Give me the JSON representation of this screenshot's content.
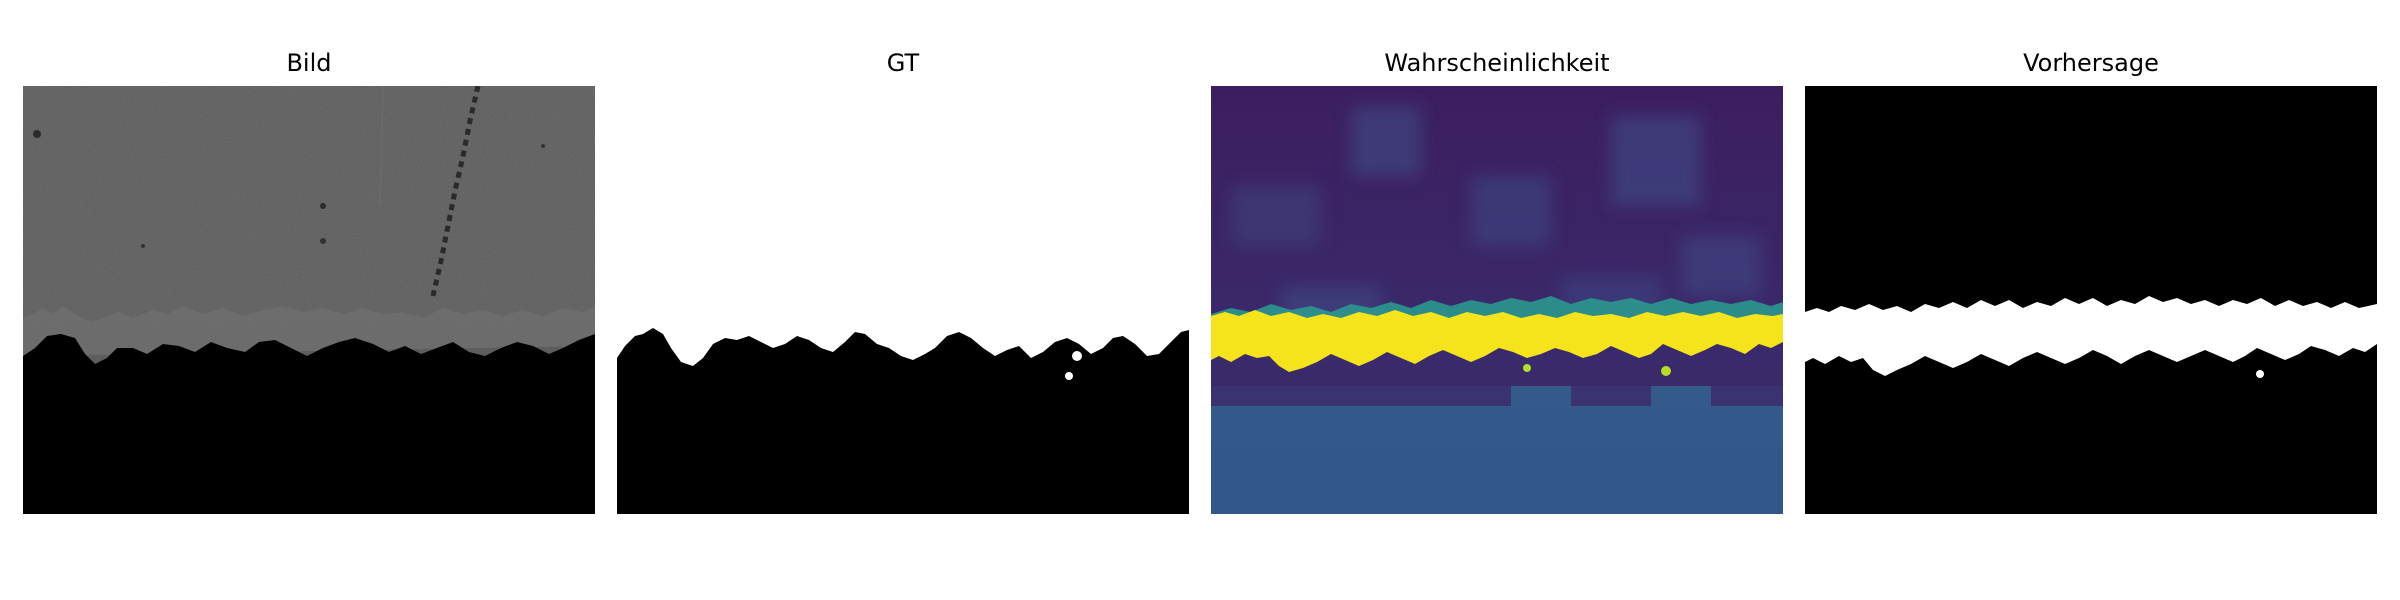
{
  "panels": [
    {
      "id": "image",
      "title": "Bild"
    },
    {
      "id": "gt",
      "title": "GT"
    },
    {
      "id": "probability",
      "title": "Wahrscheinlichkeit"
    },
    {
      "id": "prediction",
      "title": "Vorhersage"
    }
  ],
  "colors": {
    "background": "#ffffff",
    "micrograph_gray": "#5a5a5a",
    "mask_white": "#ffffff",
    "mask_black": "#000000",
    "viridis_low": "#3b1c5a",
    "viridis_mid": "#34588c",
    "viridis_high": "#f5e31b",
    "viridis_teal": "#2a9d8f"
  }
}
